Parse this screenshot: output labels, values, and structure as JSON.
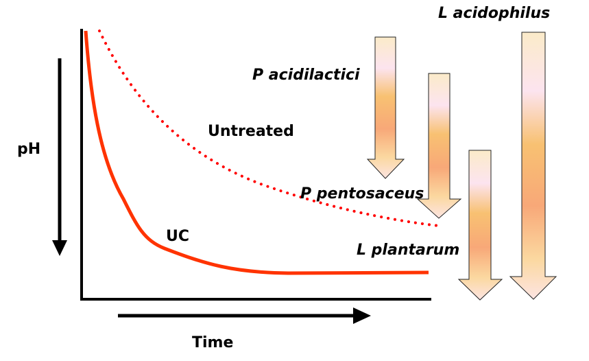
{
  "axes": {
    "y_label": "pH",
    "x_label": "Time"
  },
  "curves": {
    "uc": {
      "label": "UC",
      "color": "#ff3300",
      "style": "solid"
    },
    "untreated": {
      "label": "Untreated",
      "color": "#ff0000",
      "style": "dotted"
    }
  },
  "strains": [
    {
      "label": "P acidilactici",
      "relative_drop": 0.5
    },
    {
      "label": "P pentosaceus",
      "relative_drop": 0.53
    },
    {
      "label": "L plantarum",
      "relative_drop": 0.55
    },
    {
      "label": "L acidophilus",
      "relative_drop": 1.0
    }
  ]
}
